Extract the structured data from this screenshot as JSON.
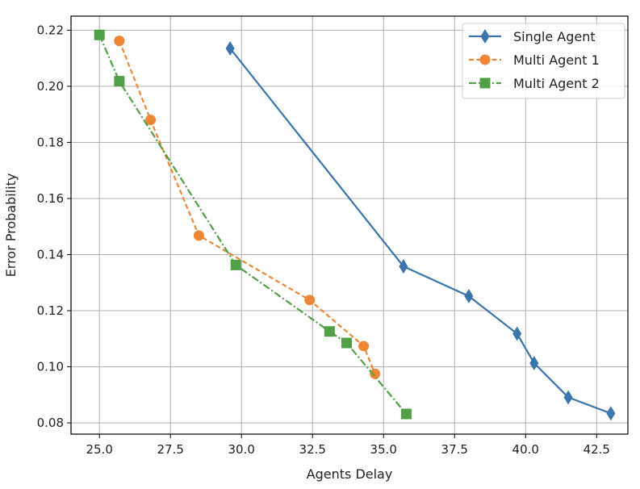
{
  "chart_data": {
    "type": "line",
    "title": "",
    "xlabel": "Agents Delay",
    "ylabel": "Error Probability",
    "xlim": [
      24.0,
      43.6
    ],
    "ylim": [
      0.076,
      0.225
    ],
    "grid": true,
    "legend_position": "top-right",
    "xticks": [
      25.0,
      27.5,
      30.0,
      32.5,
      35.0,
      37.5,
      40.0,
      42.5
    ],
    "xtick_labels": [
      "25.0",
      "27.5",
      "30.0",
      "32.5",
      "35.0",
      "37.5",
      "40.0",
      "42.5"
    ],
    "yticks": [
      0.08,
      0.1,
      0.12,
      0.14,
      0.16,
      0.18,
      0.2,
      0.22
    ],
    "ytick_labels": [
      "0.08",
      "0.10",
      "0.12",
      "0.14",
      "0.16",
      "0.18",
      "0.20",
      "0.22"
    ],
    "series": [
      {
        "name": "Single Agent",
        "color": "#3a75ab",
        "marker": "diamond",
        "linestyle": "solid",
        "x": [
          29.6,
          35.7,
          38.0,
          39.7,
          40.3,
          41.5,
          43.0
        ],
        "y": [
          0.2135,
          0.1358,
          0.1252,
          0.1118,
          0.1013,
          0.0891,
          0.0834
        ]
      },
      {
        "name": "Multi Agent 1",
        "color": "#ef8636",
        "marker": "circle",
        "linestyle": "dashed",
        "x": [
          25.7,
          26.8,
          28.5,
          32.4,
          34.3,
          34.7
        ],
        "y": [
          0.2162,
          0.188,
          0.1468,
          0.1238,
          0.1074,
          0.0975
        ]
      },
      {
        "name": "Multi Agent 2",
        "color": "#50a045",
        "marker": "square",
        "linestyle": "dashdot",
        "x": [
          25.0,
          25.7,
          29.8,
          33.1,
          33.7,
          35.8
        ],
        "y": [
          0.2183,
          0.2018,
          0.1363,
          0.1126,
          0.1085,
          0.0832
        ]
      }
    ]
  }
}
